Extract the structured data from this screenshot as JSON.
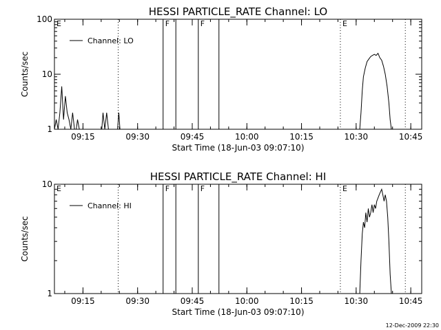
{
  "footer_timestamp": "12-Dec-2009 22:30",
  "chart_data": [
    {
      "type": "line",
      "title": "HESSI PARTICLE_RATE Channel: LO",
      "xlabel": "Start Time (18-Jun-03 09:07:10)",
      "ylabel": "Counts/sec",
      "y_scale": "log",
      "ylim": [
        1,
        100
      ],
      "y_ticks": [
        {
          "v": 1,
          "label": "1"
        },
        {
          "v": 10,
          "label": "10"
        },
        {
          "v": 100,
          "label": "100"
        }
      ],
      "xlim": [
        "09:07:10",
        "10:48:00"
      ],
      "x_ticks": [
        "09:15",
        "09:30",
        "09:45",
        "10:00",
        "10:15",
        "10:30",
        "10:45"
      ],
      "legend": {
        "label": "Channel: LO",
        "position": "top-left"
      },
      "markers": [
        {
          "time": "09:07:10",
          "label": "E",
          "style": "dotted"
        },
        {
          "time": "09:24:40",
          "label": "",
          "style": "dotted"
        },
        {
          "time": "09:37:00",
          "label": "F",
          "style": "solid"
        },
        {
          "time": "09:40:30",
          "label": "",
          "style": "solid"
        },
        {
          "time": "09:46:40",
          "label": "F",
          "style": "solid"
        },
        {
          "time": "09:52:20",
          "label": "",
          "style": "solid"
        },
        {
          "time": "10:25:40",
          "label": "E",
          "style": "dotted"
        },
        {
          "time": "10:43:30",
          "label": "",
          "style": "dotted"
        }
      ],
      "series": [
        {
          "x": [
            "09:07:10",
            "09:07:40",
            "09:08:10",
            "09:08:40",
            "09:09:10",
            "09:09:40",
            "09:10:10",
            "09:10:40",
            "09:11:10",
            "09:11:40",
            "09:12:10",
            "09:12:40",
            "09:13:10",
            "09:13:30",
            "09:14:00",
            "09:20:10",
            "09:20:30",
            "09:21:00",
            "09:21:30",
            "09:22:00",
            "09:24:30",
            "09:24:50",
            "09:25:10",
            "10:31:00",
            "10:31:20",
            "10:31:40",
            "10:32:00",
            "10:32:30",
            "10:33:00",
            "10:33:30",
            "10:34:00",
            "10:34:30",
            "10:35:00",
            "10:35:30",
            "10:36:00",
            "10:36:30",
            "10:37:00",
            "10:37:30",
            "10:38:00",
            "10:38:30",
            "10:39:00",
            "10:39:20",
            "10:39:40"
          ],
          "values": [
            1.0,
            1.5,
            1.0,
            2.0,
            6.0,
            1.5,
            4.0,
            2.0,
            1.5,
            1.0,
            2.0,
            1.0,
            1.0,
            1.5,
            1.0,
            1.0,
            2.0,
            1.0,
            2.0,
            1.0,
            1.0,
            2.0,
            1.0,
            1.0,
            2.0,
            5.0,
            9.0,
            13.0,
            17.0,
            19.0,
            21.0,
            22.0,
            23.0,
            22.0,
            24.0,
            20.0,
            18.0,
            14.0,
            10.0,
            6.0,
            3.0,
            1.5,
            1.0
          ]
        }
      ]
    },
    {
      "type": "line",
      "title": "HESSI PARTICLE_RATE Channel: HI",
      "xlabel": "Start Time (18-Jun-03 09:07:10)",
      "ylabel": "Counts/sec",
      "y_scale": "log",
      "ylim": [
        1,
        10
      ],
      "y_ticks": [
        {
          "v": 1,
          "label": "1"
        },
        {
          "v": 10,
          "label": "10"
        }
      ],
      "xlim": [
        "09:07:10",
        "10:48:00"
      ],
      "x_ticks": [
        "09:15",
        "09:30",
        "09:45",
        "10:00",
        "10:15",
        "10:30",
        "10:45"
      ],
      "legend": {
        "label": "Channel: HI",
        "position": "top-left"
      },
      "markers": [
        {
          "time": "09:07:10",
          "label": "E",
          "style": "dotted"
        },
        {
          "time": "09:24:40",
          "label": "",
          "style": "dotted"
        },
        {
          "time": "09:37:00",
          "label": "F",
          "style": "solid"
        },
        {
          "time": "09:40:30",
          "label": "",
          "style": "solid"
        },
        {
          "time": "09:46:40",
          "label": "F",
          "style": "solid"
        },
        {
          "time": "09:52:20",
          "label": "",
          "style": "solid"
        },
        {
          "time": "10:25:40",
          "label": "E",
          "style": "dotted"
        },
        {
          "time": "10:43:30",
          "label": "",
          "style": "dotted"
        }
      ],
      "series": [
        {
          "x": [
            "10:31:00",
            "10:31:20",
            "10:31:40",
            "10:32:00",
            "10:32:20",
            "10:32:40",
            "10:33:00",
            "10:33:20",
            "10:33:40",
            "10:34:00",
            "10:34:20",
            "10:34:40",
            "10:35:00",
            "10:35:20",
            "10:35:40",
            "10:36:00",
            "10:36:20",
            "10:36:40",
            "10:37:00",
            "10:37:20",
            "10:37:40",
            "10:38:00",
            "10:38:20",
            "10:38:40",
            "10:39:00",
            "10:39:20",
            "10:39:40"
          ],
          "values": [
            1.0,
            2.0,
            3.5,
            4.5,
            4.0,
            5.5,
            4.5,
            6.0,
            5.0,
            5.5,
            6.5,
            5.5,
            6.5,
            6.0,
            7.0,
            7.5,
            8.0,
            8.5,
            9.0,
            8.0,
            7.0,
            8.0,
            7.0,
            5.0,
            3.0,
            1.5,
            1.0
          ]
        }
      ]
    }
  ]
}
